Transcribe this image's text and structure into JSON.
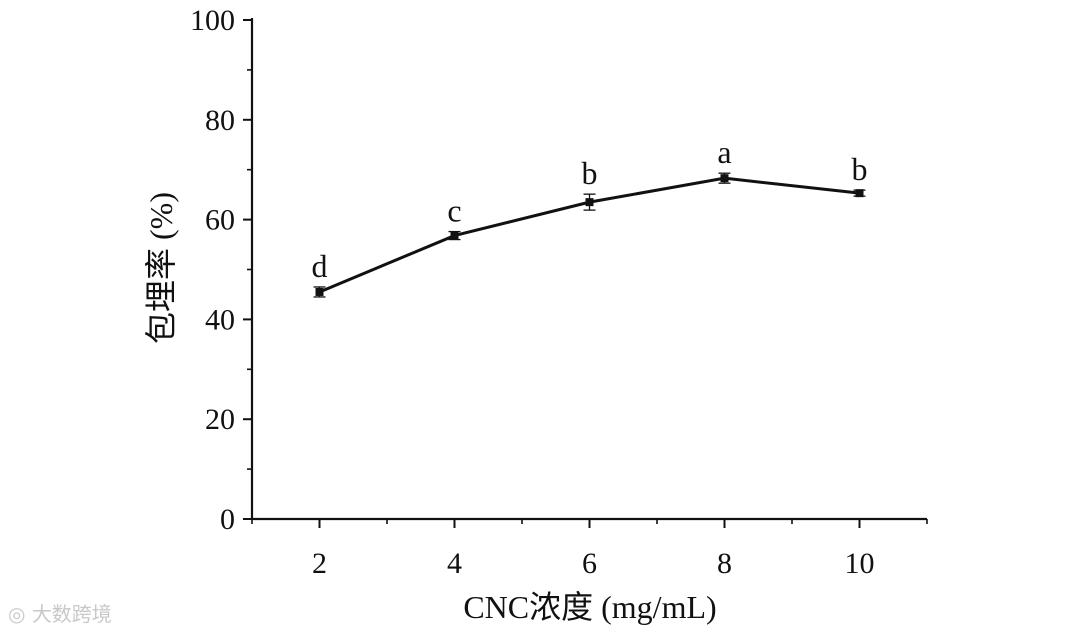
{
  "chart_data": {
    "type": "line",
    "xlabel": "CNC浓度 (mg/mL)",
    "ylabel": "包埋率 (%)",
    "xlim": [
      1,
      11
    ],
    "ylim": [
      0,
      100
    ],
    "xticks": [
      2,
      4,
      6,
      8,
      10
    ],
    "yticks": [
      0,
      20,
      40,
      60,
      80,
      100
    ],
    "series": [
      {
        "x": [
          2,
          4,
          6,
          8,
          10
        ],
        "values": [
          45.5,
          56.8,
          63.5,
          68.3,
          65.3
        ],
        "errors": [
          1.0,
          0.8,
          1.6,
          1.0,
          0.6
        ],
        "labels": [
          "d",
          "c",
          "b",
          "a",
          "b"
        ]
      }
    ],
    "grid": false,
    "legend": "none"
  },
  "watermark": {
    "text": "大数跨境",
    "icon": "camera-logo-icon"
  }
}
